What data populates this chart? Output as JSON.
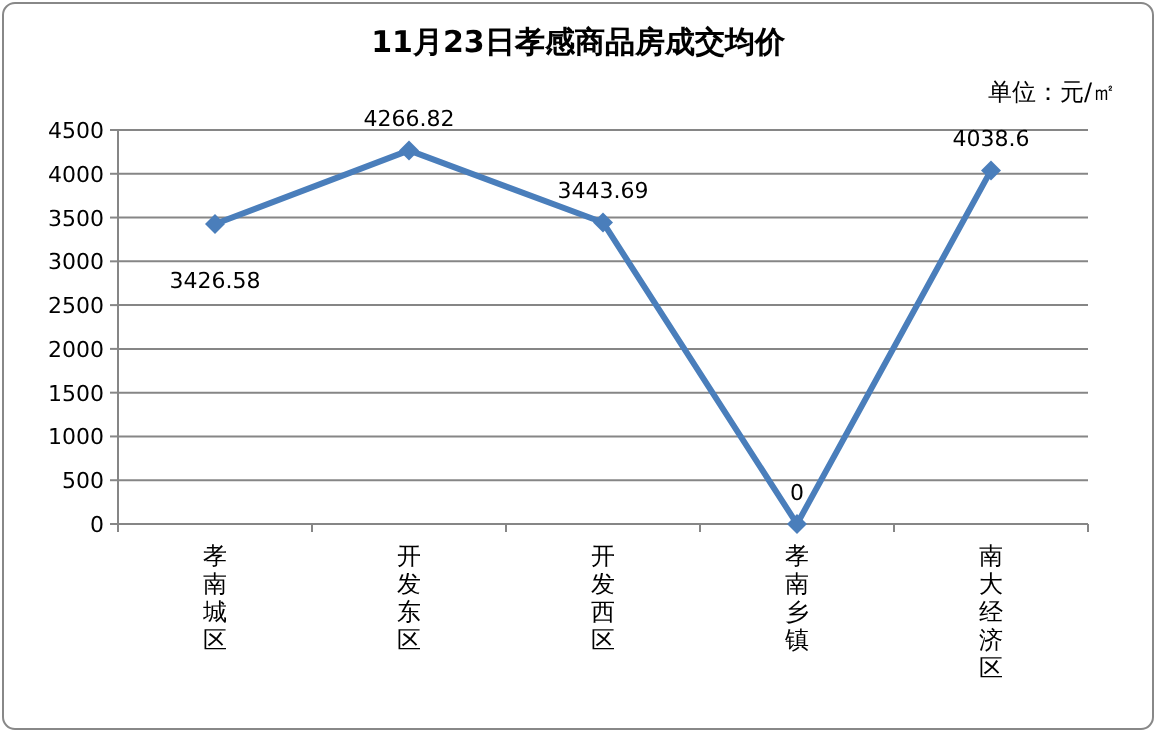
{
  "chart_data": {
    "type": "line",
    "title": "11月23日孝感商品房成交均价",
    "annotations": [
      "单位：元/㎡"
    ],
    "categories": [
      "孝南城区",
      "开发东区",
      "开发西区",
      "孝南乡镇",
      "南大经济区"
    ],
    "series": [
      {
        "color": "#4a7ebb",
        "values": [
          3426.58,
          4266.82,
          3443.69,
          0,
          4038.6
        ]
      }
    ],
    "ylim": [
      0,
      4500
    ],
    "yticks": [
      0,
      500,
      1000,
      1500,
      2000,
      2500,
      3000,
      3500,
      4000,
      4500
    ],
    "grid": "y",
    "marker": "diamond",
    "line_style": "solid",
    "data_labels": true
  }
}
